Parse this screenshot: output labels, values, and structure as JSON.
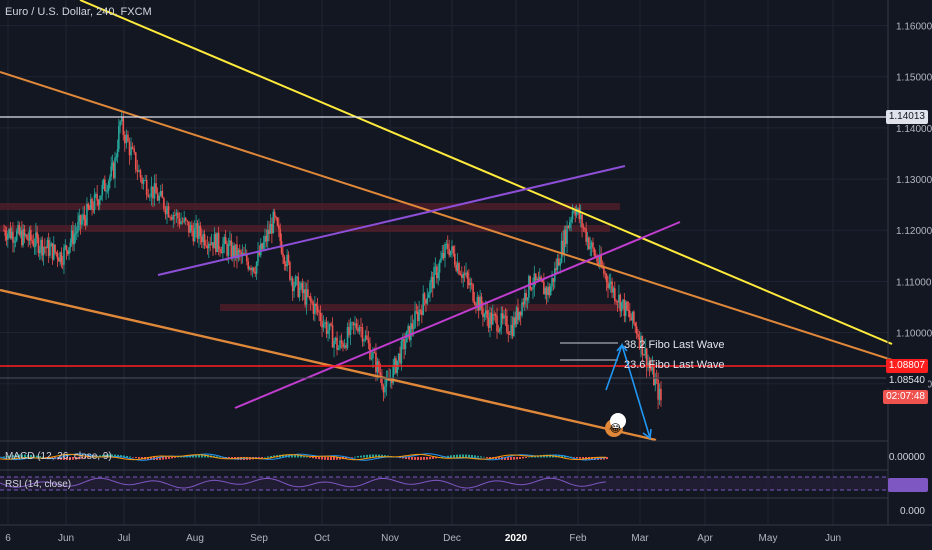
{
  "header": {
    "title": "Euro / U.S. Dollar, 240, FXCM"
  },
  "colors": {
    "background": "#131722",
    "grid": "#1f2433",
    "up_candle": "#26a69a",
    "down_candle": "#ef5350",
    "yellow_trendline": "#ffeb3b",
    "orange_trendline": "#e0883a",
    "purple_channel": "#9b4fd6",
    "red_level": "#ff1e1e",
    "white_level": "#e0e3eb",
    "projection_arrow": "#2196f3"
  },
  "chart_data": {
    "type": "candlestick",
    "symbol": "EURUSD",
    "timeframe": "240",
    "x_ticks": [
      "6",
      "Jun",
      "Jul",
      "Aug",
      "Sep",
      "Oct",
      "Nov",
      "Dec",
      "2020",
      "Feb",
      "Mar",
      "Apr",
      "May",
      "Jun"
    ],
    "y_ticks": [
      "1.16000",
      "1.15000",
      "1.14000",
      "1.13000",
      "1.12000",
      "1.11000",
      "1.10000",
      "1.09000"
    ],
    "ylim": [
      1.079,
      1.165
    ],
    "price_path": [
      [
        0,
        1.12
      ],
      [
        0.5,
        1.118
      ],
      [
        1.0,
        1.115
      ],
      [
        1.3,
        1.121
      ],
      [
        1.6,
        1.126
      ],
      [
        1.9,
        1.132
      ],
      [
        2.0,
        1.141
      ],
      [
        2.3,
        1.13
      ],
      [
        2.7,
        1.124
      ],
      [
        3.0,
        1.12
      ],
      [
        3.5,
        1.117
      ],
      [
        4.0,
        1.113
      ],
      [
        4.3,
        1.122
      ],
      [
        4.6,
        1.11
      ],
      [
        5.0,
        1.104
      ],
      [
        5.3,
        1.097
      ],
      [
        5.6,
        1.102
      ],
      [
        6.0,
        1.089
      ],
      [
        6.3,
        1.098
      ],
      [
        6.6,
        1.106
      ],
      [
        7.0,
        1.117
      ],
      [
        7.3,
        1.11
      ],
      [
        7.6,
        1.103
      ],
      [
        8.0,
        1.101
      ],
      [
        8.3,
        1.11
      ],
      [
        8.6,
        1.108
      ],
      [
        9.0,
        1.125
      ],
      [
        9.3,
        1.116
      ],
      [
        9.6,
        1.109
      ],
      [
        10.0,
        1.101
      ],
      [
        10.3,
        1.09
      ],
      [
        10.4,
        1.086
      ]
    ],
    "horizontal_levels": [
      {
        "price": 1.14013,
        "label": "1.14013"
      },
      {
        "price": 1.08807,
        "label": "1.08807"
      },
      {
        "price": 1.0854,
        "label": "1.08540"
      }
    ],
    "annotations": [
      "38.2 Fibo Last Wave",
      "23.6 Fibo Last Wave"
    ],
    "countdown": "02:07:48"
  },
  "macd": {
    "label": "MACD (12, 26, close, 9)",
    "axis_value": "0.00000"
  },
  "rsi": {
    "label": "RSI (14, close)",
    "axis_value": "0.000"
  },
  "rsi_zero": "0.000",
  "emoji_badge": "😂"
}
